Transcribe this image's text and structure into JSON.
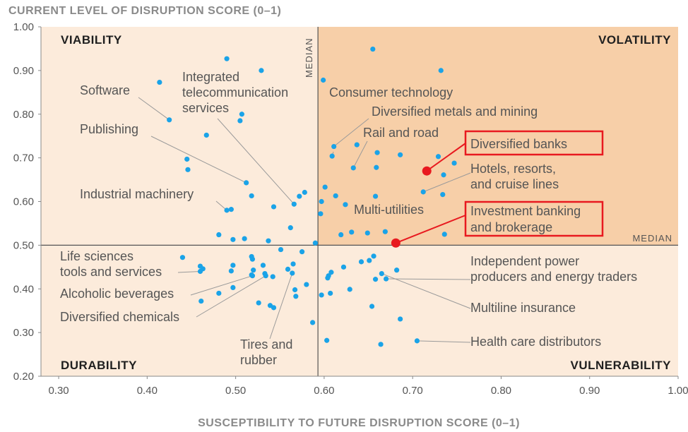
{
  "chart_data": {
    "type": "scatter",
    "title": "CURRENT LEVEL OF DISRUPTION SCORE (0–1)",
    "xlabel": "SUSCEPTIBILITY TO FUTURE DISRUPTION SCORE (0–1)",
    "ylabel": "CURRENT LEVEL OF DISRUPTION SCORE (0–1)",
    "xlim": [
      0.28,
      1.0
    ],
    "ylim": [
      0.2,
      1.0
    ],
    "x_ticks": [
      "0.30",
      "0.40",
      "0.50",
      "0.60",
      "0.70",
      "0.80",
      "0.90",
      "1.00"
    ],
    "y_ticks": [
      "0.20",
      "0.30",
      "0.40",
      "0.50",
      "0.60",
      "0.70",
      "0.80",
      "0.90",
      "1.00"
    ],
    "median_x": 0.593,
    "median_y": 0.5,
    "median_label": "MEDIAN",
    "quadrants": {
      "top_left": "VIABILITY",
      "top_right": "VOLATILITY",
      "bottom_left": "DURABILITY",
      "bottom_right": "VULNERABILITY"
    },
    "colors": {
      "point": "#1aa3e8",
      "highlight": "#e8191f",
      "quad_top_right": "#f7cfa8",
      "quad_light": "#fcebdb",
      "leader": "#9a9a9a"
    },
    "points": [
      {
        "x": 0.49,
        "y": 0.927
      },
      {
        "x": 0.529,
        "y": 0.9
      },
      {
        "x": 0.414,
        "y": 0.873
      },
      {
        "x": 0.425,
        "y": 0.787
      },
      {
        "x": 0.507,
        "y": 0.8
      },
      {
        "x": 0.505,
        "y": 0.785
      },
      {
        "x": 0.467,
        "y": 0.752
      },
      {
        "x": 0.445,
        "y": 0.697
      },
      {
        "x": 0.446,
        "y": 0.673
      },
      {
        "x": 0.512,
        "y": 0.643
      },
      {
        "x": 0.518,
        "y": 0.613
      },
      {
        "x": 0.543,
        "y": 0.588
      },
      {
        "x": 0.49,
        "y": 0.58
      },
      {
        "x": 0.495,
        "y": 0.582
      },
      {
        "x": 0.481,
        "y": 0.524
      },
      {
        "x": 0.497,
        "y": 0.513
      },
      {
        "x": 0.51,
        "y": 0.515
      },
      {
        "x": 0.537,
        "y": 0.51
      },
      {
        "x": 0.566,
        "y": 0.594
      },
      {
        "x": 0.572,
        "y": 0.612
      },
      {
        "x": 0.578,
        "y": 0.621
      },
      {
        "x": 0.562,
        "y": 0.54
      },
      {
        "x": 0.59,
        "y": 0.505
      },
      {
        "x": 0.597,
        "y": 0.6
      },
      {
        "x": 0.596,
        "y": 0.572
      },
      {
        "x": 0.601,
        "y": 0.633
      },
      {
        "x": 0.613,
        "y": 0.613
      },
      {
        "x": 0.624,
        "y": 0.593
      },
      {
        "x": 0.599,
        "y": 0.878
      },
      {
        "x": 0.655,
        "y": 0.949
      },
      {
        "x": 0.732,
        "y": 0.9
      },
      {
        "x": 0.611,
        "y": 0.726
      },
      {
        "x": 0.609,
        "y": 0.704
      },
      {
        "x": 0.637,
        "y": 0.73
      },
      {
        "x": 0.66,
        "y": 0.712
      },
      {
        "x": 0.633,
        "y": 0.677
      },
      {
        "x": 0.659,
        "y": 0.678
      },
      {
        "x": 0.686,
        "y": 0.707
      },
      {
        "x": 0.729,
        "y": 0.703
      },
      {
        "x": 0.735,
        "y": 0.661
      },
      {
        "x": 0.747,
        "y": 0.688
      },
      {
        "x": 0.734,
        "y": 0.616
      },
      {
        "x": 0.712,
        "y": 0.622
      },
      {
        "x": 0.658,
        "y": 0.612
      },
      {
        "x": 0.619,
        "y": 0.524
      },
      {
        "x": 0.631,
        "y": 0.53
      },
      {
        "x": 0.649,
        "y": 0.528
      },
      {
        "x": 0.669,
        "y": 0.531
      },
      {
        "x": 0.736,
        "y": 0.525
      },
      {
        "x": 0.656,
        "y": 0.475
      },
      {
        "x": 0.44,
        "y": 0.472
      },
      {
        "x": 0.46,
        "y": 0.452
      },
      {
        "x": 0.463,
        "y": 0.446
      },
      {
        "x": 0.46,
        "y": 0.44
      },
      {
        "x": 0.497,
        "y": 0.454
      },
      {
        "x": 0.495,
        "y": 0.441
      },
      {
        "x": 0.497,
        "y": 0.403
      },
      {
        "x": 0.518,
        "y": 0.474
      },
      {
        "x": 0.519,
        "y": 0.468
      },
      {
        "x": 0.52,
        "y": 0.443
      },
      {
        "x": 0.518,
        "y": 0.432
      },
      {
        "x": 0.519,
        "y": 0.43
      },
      {
        "x": 0.531,
        "y": 0.454
      },
      {
        "x": 0.533,
        "y": 0.435
      },
      {
        "x": 0.534,
        "y": 0.43
      },
      {
        "x": 0.542,
        "y": 0.428
      },
      {
        "x": 0.551,
        "y": 0.49
      },
      {
        "x": 0.559,
        "y": 0.445
      },
      {
        "x": 0.565,
        "y": 0.457
      },
      {
        "x": 0.564,
        "y": 0.436
      },
      {
        "x": 0.567,
        "y": 0.398
      },
      {
        "x": 0.568,
        "y": 0.383
      },
      {
        "x": 0.58,
        "y": 0.41
      },
      {
        "x": 0.575,
        "y": 0.485
      },
      {
        "x": 0.461,
        "y": 0.372
      },
      {
        "x": 0.481,
        "y": 0.39
      },
      {
        "x": 0.526,
        "y": 0.368
      },
      {
        "x": 0.539,
        "y": 0.362
      },
      {
        "x": 0.543,
        "y": 0.357
      },
      {
        "x": 0.587,
        "y": 0.323
      },
      {
        "x": 0.603,
        "y": 0.282
      },
      {
        "x": 0.664,
        "y": 0.273
      },
      {
        "x": 0.705,
        "y": 0.281
      },
      {
        "x": 0.686,
        "y": 0.331
      },
      {
        "x": 0.654,
        "y": 0.36
      },
      {
        "x": 0.597,
        "y": 0.386
      },
      {
        "x": 0.605,
        "y": 0.43
      },
      {
        "x": 0.608,
        "y": 0.438
      },
      {
        "x": 0.604,
        "y": 0.425
      },
      {
        "x": 0.607,
        "y": 0.39
      },
      {
        "x": 0.622,
        "y": 0.45
      },
      {
        "x": 0.642,
        "y": 0.462
      },
      {
        "x": 0.651,
        "y": 0.465
      },
      {
        "x": 0.629,
        "y": 0.399
      },
      {
        "x": 0.665,
        "y": 0.435
      },
      {
        "x": 0.658,
        "y": 0.422
      },
      {
        "x": 0.67,
        "y": 0.423
      },
      {
        "x": 0.682,
        "y": 0.443
      }
    ],
    "highlighted": [
      {
        "label": "Diversified banks",
        "x": 0.716,
        "y": 0.67
      },
      {
        "label": "Investment banking and brokerage",
        "x": 0.681,
        "y": 0.505
      }
    ],
    "annotations": [
      {
        "lines": [
          "Software"
        ],
        "px": 0.425,
        "py": 0.787
      },
      {
        "lines": [
          "Publishing"
        ],
        "px": 0.512,
        "py": 0.643
      },
      {
        "lines": [
          "Integrated",
          "telecommunication",
          "services"
        ],
        "px": 0.566,
        "py": 0.594
      },
      {
        "lines": [
          "Industrial machinery"
        ],
        "px": 0.49,
        "py": 0.58
      },
      {
        "lines": [
          "Consumer technology"
        ],
        "px": 0.609,
        "py": 0.704
      },
      {
        "lines": [
          "Diversified metals and mining"
        ],
        "px": 0.611,
        "py": 0.726
      },
      {
        "lines": [
          "Rail and road"
        ],
        "px": 0.633,
        "py": 0.677
      },
      {
        "lines": [
          "Multi-utilities"
        ],
        "px": 0.619,
        "py": 0.524
      },
      {
        "lines": [
          "Hotels, resorts,",
          "and cruise lines"
        ],
        "px": 0.712,
        "py": 0.622
      },
      {
        "lines": [
          "Life sciences",
          "tools and services"
        ],
        "px": 0.46,
        "py": 0.44
      },
      {
        "lines": [
          "Alcoholic beverages"
        ],
        "px": 0.519,
        "py": 0.43
      },
      {
        "lines": [
          "Diversified chemicals"
        ],
        "px": 0.534,
        "py": 0.43
      },
      {
        "lines": [
          "Tires and",
          "rubber"
        ],
        "px": 0.564,
        "py": 0.436
      },
      {
        "lines": [
          "Independent power",
          "producers and energy traders"
        ],
        "px": 0.67,
        "py": 0.423
      },
      {
        "lines": [
          "Multiline insurance"
        ],
        "px": 0.665,
        "py": 0.435
      },
      {
        "lines": [
          "Health care distributors"
        ],
        "px": 0.705,
        "py": 0.281
      }
    ]
  }
}
